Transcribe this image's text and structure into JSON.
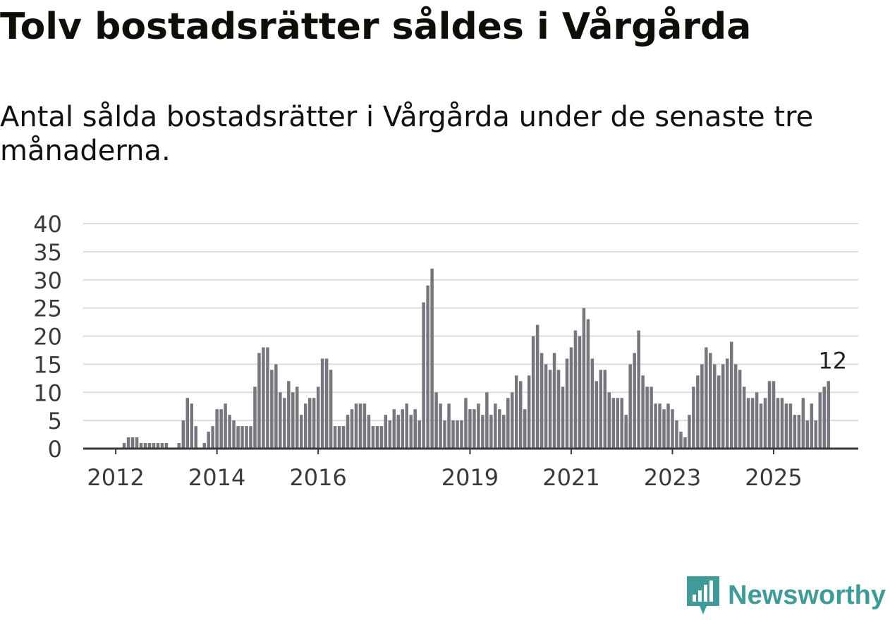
{
  "header": {
    "title": "Tolv bostadsrätter såldes i Vårgårda",
    "subtitle": "Antal sålda bostadsrätter i Vårgårda under de senaste tre månaderna."
  },
  "brand": {
    "name": "Newsworthy",
    "color": "#3f9a98",
    "icon": "newsworthy-logo-icon"
  },
  "colors": {
    "bar": "#77767c",
    "highlight": "#1a9c95",
    "grid": "#dcdcdc",
    "axis": "#3a3a3a"
  },
  "chart_data": {
    "type": "bar",
    "title": "Tolv bostadsrätter såldes i Vårgårda",
    "xlabel": "",
    "ylabel": "",
    "ylim": [
      0,
      40
    ],
    "yticks": [
      0,
      5,
      10,
      15,
      20,
      25,
      30,
      35,
      40
    ],
    "x_tick_labels": [
      {
        "label": "2012",
        "index": 6
      },
      {
        "label": "2014",
        "index": 30
      },
      {
        "label": "2016",
        "index": 54
      },
      {
        "label": "2019",
        "index": 90
      },
      {
        "label": "2021",
        "index": 114
      },
      {
        "label": "2023",
        "index": 138
      },
      {
        "label": "2025",
        "index": 162
      }
    ],
    "grid": true,
    "start_offset": 0,
    "values": [
      0,
      0,
      0,
      0,
      0,
      0,
      0,
      0,
      1,
      2,
      2,
      2,
      1,
      1,
      1,
      1,
      1,
      1,
      1,
      0,
      0,
      1,
      5,
      9,
      8,
      4,
      0,
      1,
      3,
      4,
      7,
      7,
      8,
      6,
      5,
      4,
      4,
      4,
      4,
      11,
      17,
      18,
      18,
      14,
      15,
      10,
      9,
      12,
      10,
      11,
      6,
      8,
      9,
      9,
      11,
      16,
      16,
      14,
      4,
      4,
      4,
      6,
      7,
      8,
      8,
      8,
      6,
      4,
      4,
      4,
      6,
      5,
      7,
      6,
      7,
      8,
      6,
      7,
      5,
      26,
      29,
      32,
      10,
      8,
      5,
      8,
      5,
      5,
      5,
      9,
      7,
      7,
      8,
      6,
      10,
      6,
      8,
      7,
      6,
      9,
      10,
      13,
      12,
      7,
      13,
      20,
      22,
      17,
      15,
      14,
      17,
      14,
      11,
      16,
      18,
      21,
      20,
      25,
      23,
      16,
      12,
      14,
      14,
      10,
      9,
      9,
      9,
      6,
      15,
      17,
      21,
      13,
      11,
      11,
      8,
      8,
      7,
      8,
      7,
      5,
      3,
      2,
      6,
      11,
      13,
      15,
      18,
      17,
      15,
      13,
      15,
      16,
      19,
      15,
      14,
      11,
      9,
      9,
      10,
      8,
      9,
      12,
      12,
      9,
      9,
      8,
      8,
      6,
      6,
      9,
      5,
      8,
      5,
      10,
      11,
      12
    ],
    "highlight": {
      "index": 176,
      "value": 12,
      "label": "12"
    }
  }
}
